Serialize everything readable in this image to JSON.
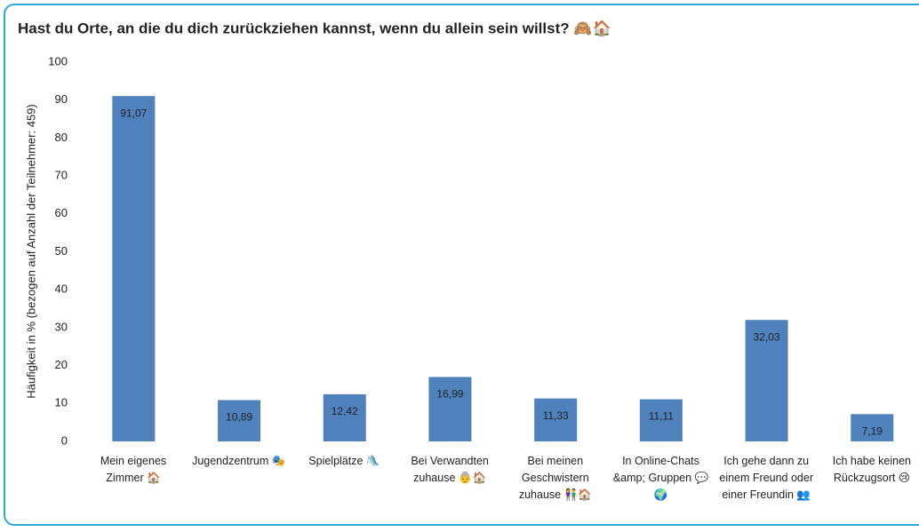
{
  "chart_data": {
    "type": "bar",
    "title": "Hast du Orte, an die du dich zurückziehen kannst, wenn du allein sein willst? 🙈🏠",
    "y_label": "Häufigkeit in % (bezogen auf Anzahl der Teilnehmer: 459)",
    "categories": [
      "Mein eigenes Zimmer 🏠",
      "Jugendzentrum 🎭",
      "Spielplätze 🛝",
      "Bei Verwandten zuhause 👵🏠",
      "Bei meinen Geschwistern zuhause 👫🏠",
      "In Online-Chats &amp; Gruppen 💬🌍",
      "Ich gehe dann zu einem Freund oder einer Freundin 👥",
      "Ich habe keinen Rückzugsort 😢"
    ],
    "values": [
      91.07,
      10.89,
      12.42,
      16.99,
      11.33,
      11.11,
      32.03,
      7.19
    ],
    "value_labels": [
      "91,07",
      "10,89",
      "12,42",
      "16,99",
      "11,33",
      "11,11",
      "32,03",
      "7,19"
    ],
    "color": "#4f81bd",
    "ylim": [
      0,
      100
    ],
    "yticks": [
      0,
      10,
      20,
      30,
      40,
      50,
      60,
      70,
      80,
      90,
      100
    ],
    "grid": false
  }
}
